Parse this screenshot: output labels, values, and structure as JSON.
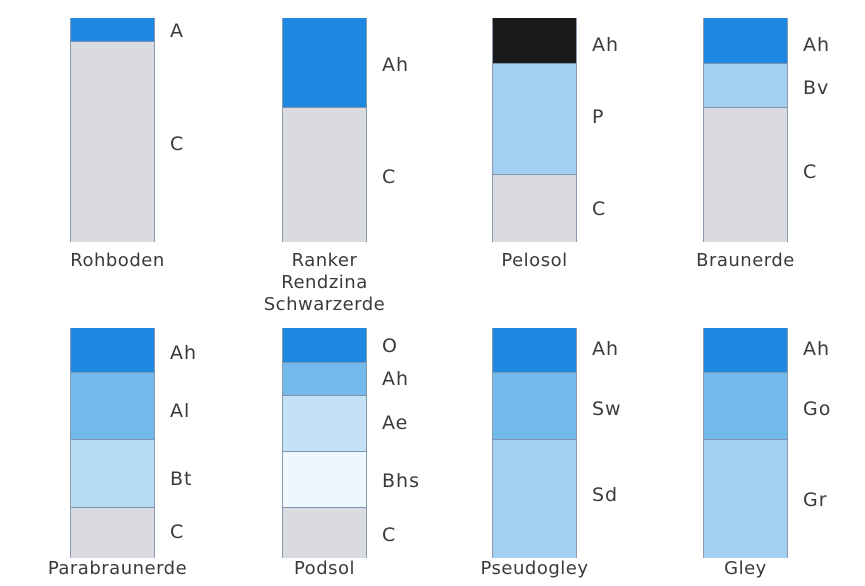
{
  "profiles": [
    {
      "name_lines": [
        "Rohboden"
      ],
      "horizons": [
        {
          "label": "A",
          "color": "#1e88e0"
        },
        {
          "label": "C",
          "color": "#d9dbe0"
        }
      ]
    },
    {
      "name_lines": [
        "Ranker",
        "Rendzina",
        "Schwarzerde"
      ],
      "horizons": [
        {
          "label": "Ah",
          "color": "#1e88e0"
        },
        {
          "label": "C",
          "color": "#d9dbe0"
        }
      ]
    },
    {
      "name_lines": [
        "Pelosol"
      ],
      "horizons": [
        {
          "label": "Ah",
          "color": "#1a1a1a"
        },
        {
          "label": "P",
          "color": "#a3d0f0"
        },
        {
          "label": "C",
          "color": "#d9dbe0"
        }
      ]
    },
    {
      "name_lines": [
        "Braunerde"
      ],
      "horizons": [
        {
          "label": "Ah",
          "color": "#1e88e0"
        },
        {
          "label": "Bv",
          "color": "#a3d0f0"
        },
        {
          "label": "C",
          "color": "#d9dbe0"
        }
      ]
    },
    {
      "name_lines": [
        "Parabraunerde"
      ],
      "horizons": [
        {
          "label": "Ah",
          "color": "#1e88e0"
        },
        {
          "label": "Al",
          "color": "#74b9ec"
        },
        {
          "label": "Bt",
          "color": "#b8dcf4"
        },
        {
          "label": "C",
          "color": "#d9dbe0"
        }
      ]
    },
    {
      "name_lines": [
        "Podsol"
      ],
      "horizons": [
        {
          "label": "O",
          "color": "#1e88e0"
        },
        {
          "label": "Ah",
          "color": "#74b9ec"
        },
        {
          "label": "Ae",
          "color": "#c3e2f6"
        },
        {
          "label": "Bhs",
          "color": "#eef7fd"
        },
        {
          "label": "C",
          "color": "#d9dbe0"
        }
      ]
    },
    {
      "name_lines": [
        "Pseudogley"
      ],
      "horizons": [
        {
          "label": "Ah",
          "color": "#1e88e0"
        },
        {
          "label": "Sw",
          "color": "#74b9ec"
        },
        {
          "label": "Sd",
          "color": "#a3d0f0"
        }
      ]
    },
    {
      "name_lines": [
        "Gley"
      ],
      "horizons": [
        {
          "label": "Ah",
          "color": "#1e88e0"
        },
        {
          "label": "Go",
          "color": "#74b9ec"
        },
        {
          "label": "Gr",
          "color": "#a3d0f0"
        }
      ]
    }
  ]
}
